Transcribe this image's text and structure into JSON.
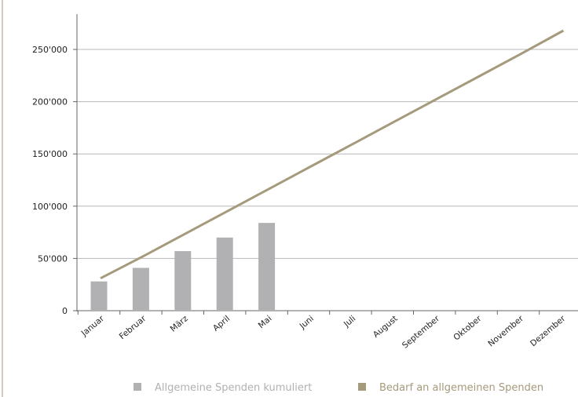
{
  "chart_data": {
    "type": "bar",
    "categories": [
      "Januar",
      "Februar",
      "März",
      "April",
      "Mai",
      "Juni",
      "Juli",
      "August",
      "September",
      "Oktober",
      "November",
      "Dezember"
    ],
    "ylim": [
      0,
      250000
    ],
    "y_ticks": [
      0,
      50000,
      100000,
      150000,
      200000,
      250000
    ],
    "y_tick_labels": [
      "0",
      "50'000",
      "100'000",
      "150'000",
      "200'000",
      "250'000"
    ],
    "grid": true,
    "legend_position": "bottom",
    "series": [
      {
        "name": "Allgemeine Spenden kumuliert",
        "type": "bar",
        "color": "#b1b1b3",
        "values": [
          28000,
          41000,
          57000,
          70000,
          84000,
          null,
          null,
          null,
          null,
          null,
          null,
          null
        ]
      },
      {
        "name": "Bedarf an allgemeinen Spenden",
        "type": "line",
        "color": "#a59a7c",
        "values": [
          31000,
          52500,
          74000,
          95500,
          117000,
          138500,
          160000,
          181500,
          203000,
          224500,
          246000,
          268000
        ]
      }
    ]
  }
}
